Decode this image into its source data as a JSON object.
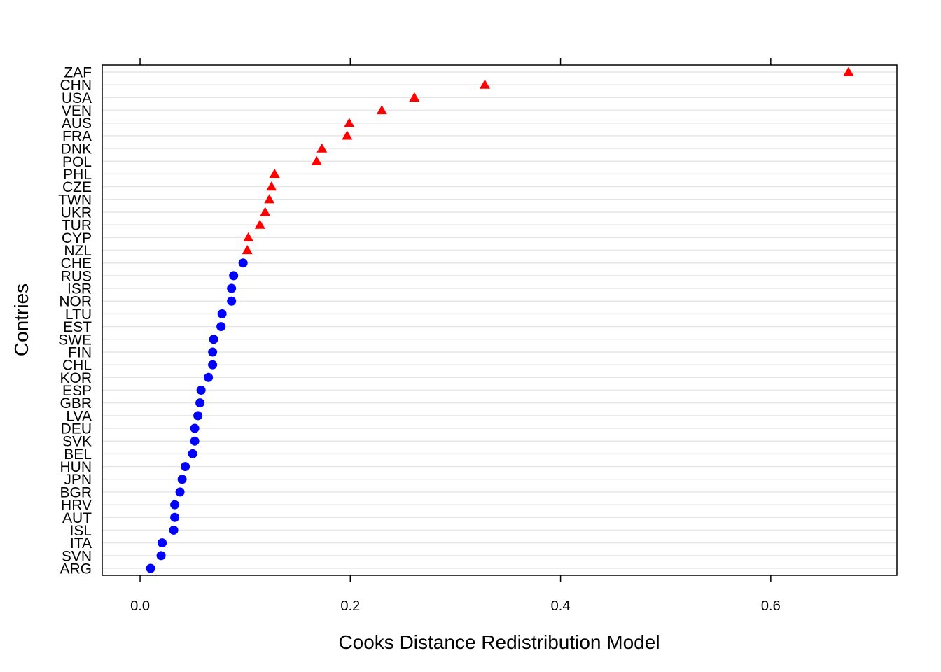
{
  "chart_data": {
    "type": "scatter",
    "subtype": "dotplot",
    "xlabel": "Cooks Distance Redistribution Model",
    "ylabel": "Contries",
    "xlim": [
      -0.036,
      0.72
    ],
    "xticks": [
      "0.0",
      "0.2",
      "0.4",
      "0.6"
    ],
    "xtick_values": [
      0.0,
      0.2,
      0.4,
      0.6
    ],
    "grid": true,
    "colors": {
      "high": "#ff0000",
      "low": "#0000ff",
      "grid": "#e6e6e6",
      "frame": "#000000"
    },
    "markers": {
      "high": "triangle",
      "low": "circle"
    },
    "countries": [
      "ZAF",
      "CHN",
      "USA",
      "VEN",
      "AUS",
      "FRA",
      "DNK",
      "POL",
      "PHL",
      "CZE",
      "TWN",
      "UKR",
      "TUR",
      "CYP",
      "NZL",
      "CHE",
      "RUS",
      "ISR",
      "NOR",
      "LTU",
      "EST",
      "SWE",
      "FIN",
      "CHL",
      "KOR",
      "ESP",
      "GBR",
      "LVA",
      "DEU",
      "SVK",
      "BEL",
      "HUN",
      "JPN",
      "BGR",
      "HRV",
      "AUT",
      "ISL",
      "ITA",
      "SVN",
      "ARG"
    ],
    "values": [
      0.674,
      0.328,
      0.261,
      0.23,
      0.199,
      0.197,
      0.173,
      0.168,
      0.128,
      0.125,
      0.123,
      0.119,
      0.114,
      0.103,
      0.102,
      0.098,
      0.089,
      0.087,
      0.087,
      0.078,
      0.077,
      0.07,
      0.069,
      0.069,
      0.065,
      0.058,
      0.057,
      0.055,
      0.052,
      0.052,
      0.05,
      0.043,
      0.04,
      0.038,
      0.033,
      0.033,
      0.032,
      0.021,
      0.02,
      0.01
    ],
    "groups": [
      "high",
      "high",
      "high",
      "high",
      "high",
      "high",
      "high",
      "high",
      "high",
      "high",
      "high",
      "high",
      "high",
      "high",
      "high",
      "low",
      "low",
      "low",
      "low",
      "low",
      "low",
      "low",
      "low",
      "low",
      "low",
      "low",
      "low",
      "low",
      "low",
      "low",
      "low",
      "low",
      "low",
      "low",
      "low",
      "low",
      "low",
      "low",
      "low",
      "low"
    ]
  }
}
